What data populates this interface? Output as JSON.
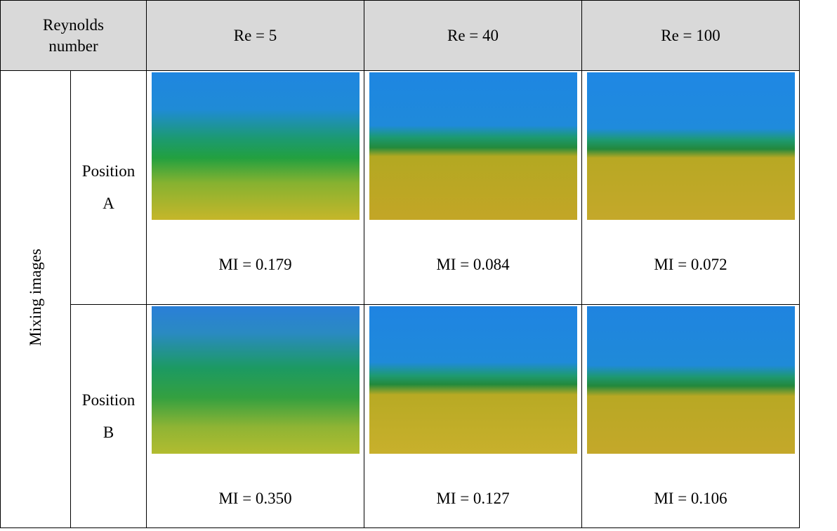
{
  "header": {
    "corner": "Reynolds number",
    "columns": [
      "Re = 5",
      "Re = 40",
      "Re = 100"
    ]
  },
  "side_label": "Mixing images",
  "rows": [
    {
      "label": "Position A",
      "captions": [
        "MI = 0.179",
        "MI = 0.084",
        "MI = 0.072"
      ]
    },
    {
      "label": "Position B",
      "captions": [
        "MI = 0.350",
        "MI = 0.127",
        "MI = 0.106"
      ]
    }
  ]
}
